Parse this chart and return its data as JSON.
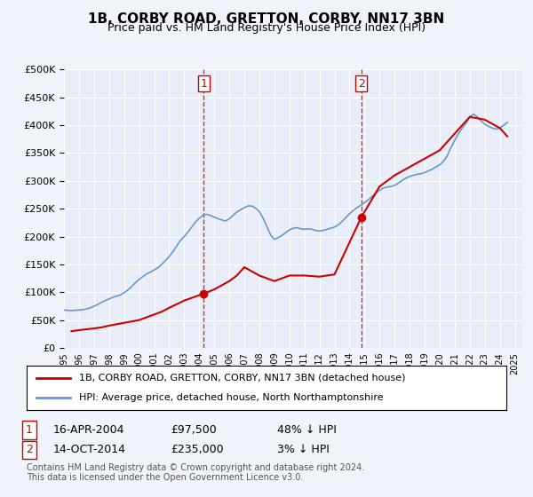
{
  "title": "1B, CORBY ROAD, GRETTON, CORBY, NN17 3BN",
  "subtitle": "Price paid vs. HM Land Registry's House Price Index (HPI)",
  "ylabel": "",
  "ylim": [
    0,
    500000
  ],
  "yticks": [
    0,
    50000,
    100000,
    150000,
    200000,
    250000,
    300000,
    350000,
    400000,
    450000,
    500000
  ],
  "xlim_start": 1995.0,
  "xlim_end": 2025.5,
  "background_color": "#f0f4ff",
  "plot_bg": "#e8eef8",
  "grid_color": "#ffffff",
  "hpi_color": "#6699cc",
  "price_color": "#cc0000",
  "dashed_color": "#cc0000",
  "sale1_x": 2004.29,
  "sale1_y": 97500,
  "sale2_x": 2014.79,
  "sale2_y": 235000,
  "legend_line1": "1B, CORBY ROAD, GRETTON, CORBY, NN17 3BN (detached house)",
  "legend_line2": "HPI: Average price, detached house, North Northamptonshire",
  "annotation1_label": "1",
  "annotation1_date": "16-APR-2004",
  "annotation1_price": "£97,500",
  "annotation1_hpi": "48% ↓ HPI",
  "annotation2_label": "2",
  "annotation2_date": "14-OCT-2014",
  "annotation2_price": "£235,000",
  "annotation2_hpi": "3% ↓ HPI",
  "footer": "Contains HM Land Registry data © Crown copyright and database right 2024.\nThis data is licensed under the Open Government Licence v3.0.",
  "hpi_data_x": [
    1995.0,
    1995.25,
    1995.5,
    1995.75,
    1996.0,
    1996.25,
    1996.5,
    1996.75,
    1997.0,
    1997.25,
    1997.5,
    1997.75,
    1998.0,
    1998.25,
    1998.5,
    1998.75,
    1999.0,
    1999.25,
    1999.5,
    1999.75,
    2000.0,
    2000.25,
    2000.5,
    2000.75,
    2001.0,
    2001.25,
    2001.5,
    2001.75,
    2002.0,
    2002.25,
    2002.5,
    2002.75,
    2003.0,
    2003.25,
    2003.5,
    2003.75,
    2004.0,
    2004.25,
    2004.5,
    2004.75,
    2005.0,
    2005.25,
    2005.5,
    2005.75,
    2006.0,
    2006.25,
    2006.5,
    2006.75,
    2007.0,
    2007.25,
    2007.5,
    2007.75,
    2008.0,
    2008.25,
    2008.5,
    2008.75,
    2009.0,
    2009.25,
    2009.5,
    2009.75,
    2010.0,
    2010.25,
    2010.5,
    2010.75,
    2011.0,
    2011.25,
    2011.5,
    2011.75,
    2012.0,
    2012.25,
    2012.5,
    2012.75,
    2013.0,
    2013.25,
    2013.5,
    2013.75,
    2014.0,
    2014.25,
    2014.5,
    2014.75,
    2015.0,
    2015.25,
    2015.5,
    2015.75,
    2016.0,
    2016.25,
    2016.5,
    2016.75,
    2017.0,
    2017.25,
    2017.5,
    2017.75,
    2018.0,
    2018.25,
    2018.5,
    2018.75,
    2019.0,
    2019.25,
    2019.5,
    2019.75,
    2020.0,
    2020.25,
    2020.5,
    2020.75,
    2021.0,
    2021.25,
    2021.5,
    2021.75,
    2022.0,
    2022.25,
    2022.5,
    2022.75,
    2023.0,
    2023.25,
    2023.5,
    2023.75,
    2024.0,
    2024.25,
    2024.5
  ],
  "hpi_data_y": [
    68000,
    67500,
    67000,
    67500,
    68000,
    68500,
    70000,
    72000,
    75000,
    78000,
    82000,
    85000,
    88000,
    91000,
    93000,
    95000,
    99000,
    104000,
    110000,
    117000,
    123000,
    128000,
    133000,
    136000,
    140000,
    144000,
    150000,
    157000,
    164000,
    173000,
    183000,
    193000,
    200000,
    208000,
    217000,
    226000,
    233000,
    238000,
    240000,
    238000,
    235000,
    232000,
    230000,
    228000,
    232000,
    238000,
    244000,
    248000,
    252000,
    255000,
    255000,
    251000,
    245000,
    233000,
    218000,
    203000,
    195000,
    198000,
    202000,
    207000,
    212000,
    215000,
    216000,
    214000,
    213000,
    214000,
    213000,
    211000,
    210000,
    211000,
    213000,
    215000,
    217000,
    221000,
    227000,
    234000,
    241000,
    247000,
    252000,
    256000,
    261000,
    266000,
    272000,
    278000,
    283000,
    287000,
    289000,
    290000,
    292000,
    296000,
    301000,
    305000,
    308000,
    310000,
    312000,
    313000,
    315000,
    318000,
    321000,
    325000,
    329000,
    335000,
    345000,
    360000,
    373000,
    385000,
    395000,
    403000,
    415000,
    420000,
    415000,
    408000,
    402000,
    398000,
    395000,
    393000,
    395000,
    400000,
    405000
  ],
  "price_data_x": [
    1995.5,
    1996.0,
    1997.0,
    1997.5,
    1998.0,
    1999.0,
    2000.0,
    2000.5,
    2001.0,
    2001.5,
    2002.0,
    2003.0,
    2004.29,
    2005.0,
    2006.0,
    2006.5,
    2007.0,
    2008.0,
    2009.0,
    2010.0,
    2011.0,
    2012.0,
    2013.0,
    2014.79,
    2016.0,
    2017.0,
    2018.0,
    2019.0,
    2020.0,
    2021.0,
    2022.0,
    2023.0,
    2024.0,
    2024.5
  ],
  "price_data_y": [
    30000,
    32000,
    35000,
    37000,
    40000,
    45000,
    50000,
    55000,
    60000,
    65000,
    72000,
    85000,
    97500,
    105000,
    120000,
    130000,
    145000,
    130000,
    120000,
    130000,
    130000,
    128000,
    132000,
    235000,
    290000,
    310000,
    325000,
    340000,
    355000,
    385000,
    415000,
    410000,
    395000,
    380000
  ]
}
